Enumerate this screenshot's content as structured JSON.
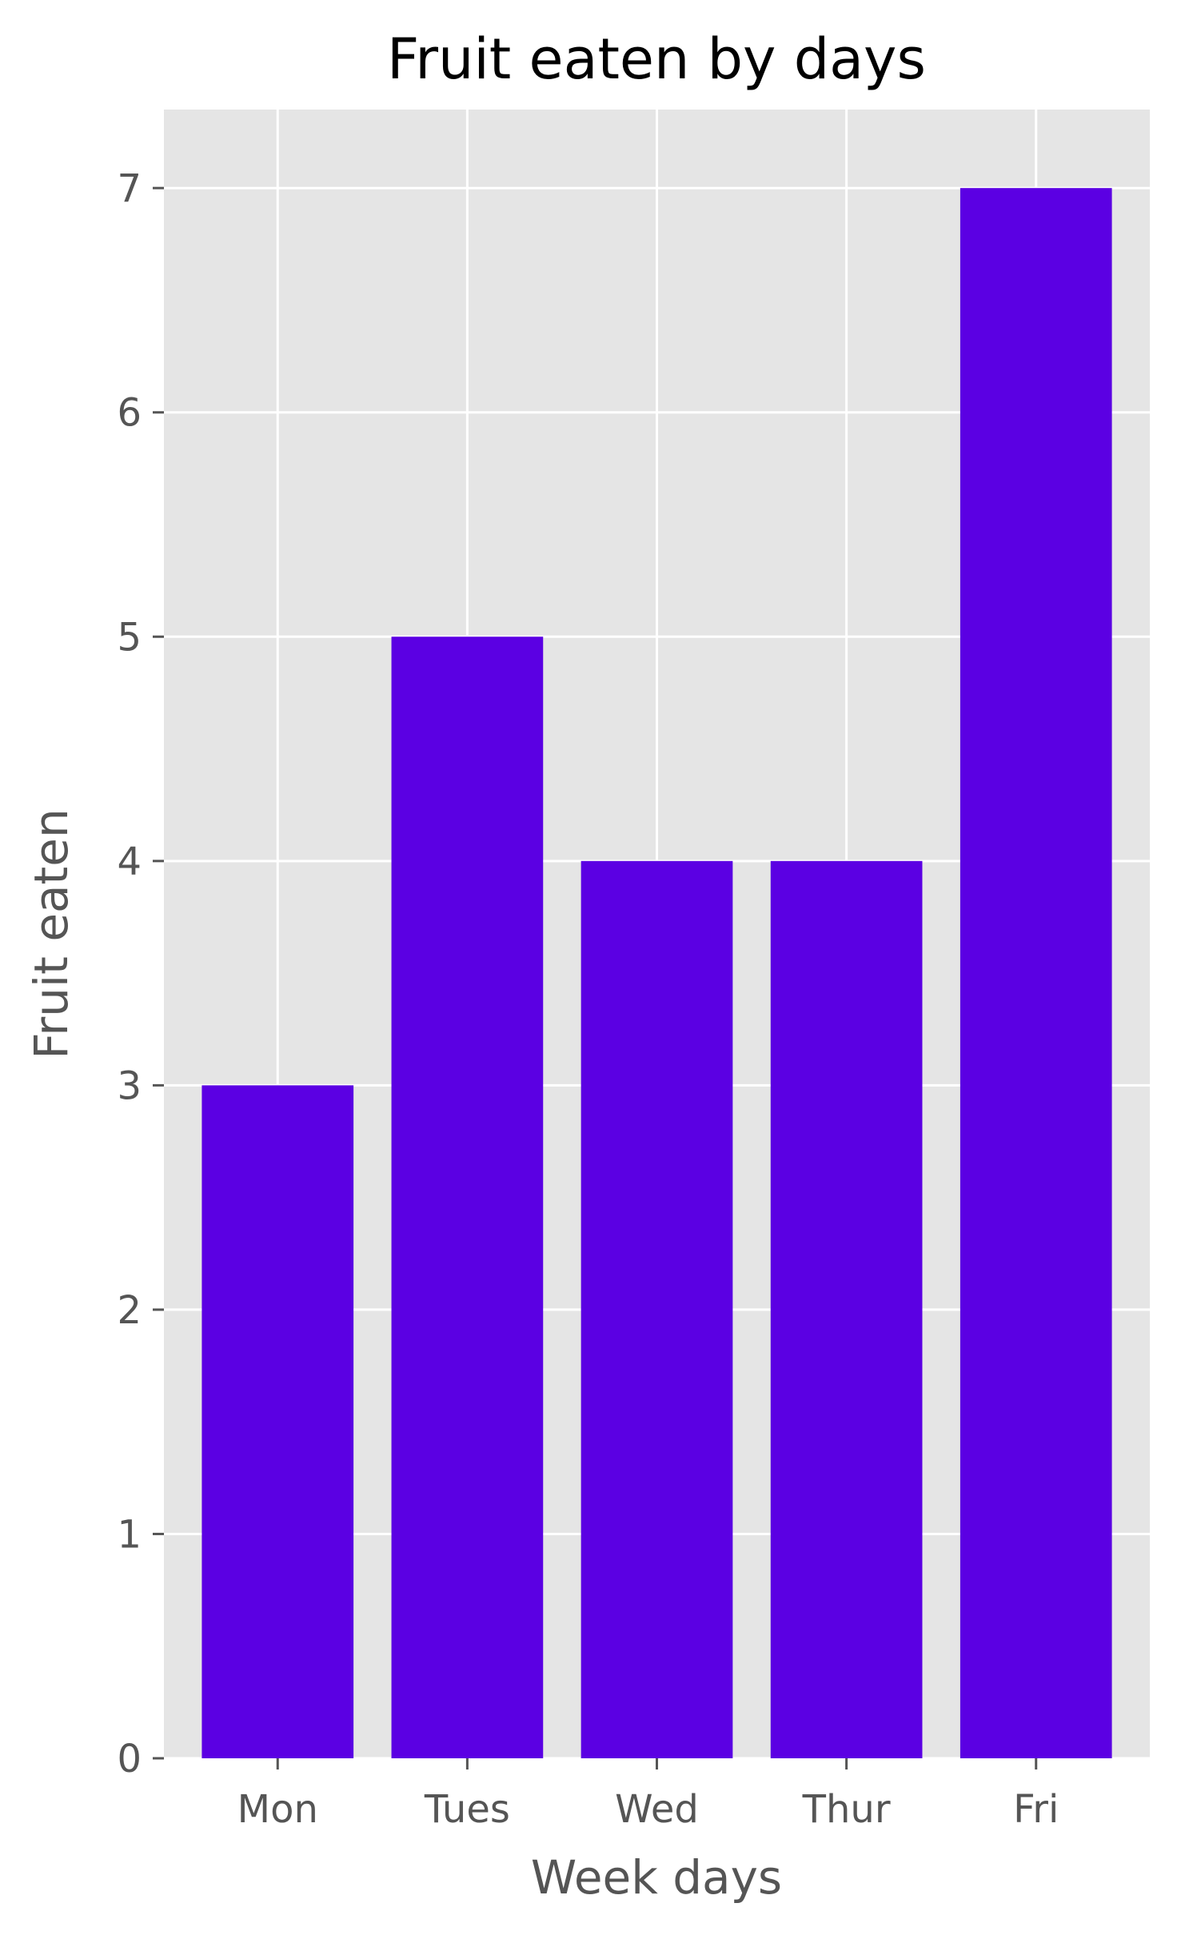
{
  "chart_data": {
    "type": "bar",
    "title": "Fruit eaten by days",
    "xlabel": "Week days",
    "ylabel": "Fruit eaten",
    "categories": [
      "Mon",
      "Tues",
      "Wed",
      "Thur",
      "Fri"
    ],
    "values": [
      3,
      5,
      4,
      4,
      7
    ],
    "ylim": [
      0,
      7.35
    ],
    "yticks": [
      "0",
      "1",
      "2",
      "3",
      "4",
      "5",
      "6",
      "7"
    ],
    "grid": true,
    "legend": "none",
    "colors": {
      "bar": "#5b00e3",
      "panel": "#e5e5e5",
      "grid": "#ffffff",
      "text": "#555555",
      "title": "#000000"
    }
  }
}
